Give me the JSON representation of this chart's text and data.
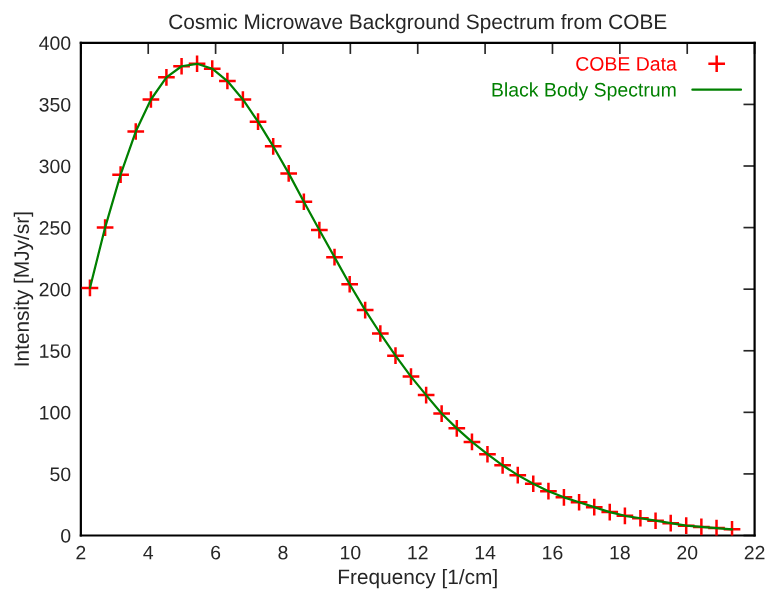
{
  "chart_data": {
    "type": "scatter",
    "title": "Cosmic Microwave Background Spectrum from COBE",
    "xlabel": "Frequency [1/cm]",
    "ylabel": "Intensity [MJy/sr]",
    "x": [
      2.27,
      2.72,
      3.18,
      3.63,
      4.08,
      4.54,
      4.99,
      5.45,
      5.9,
      6.35,
      6.81,
      7.26,
      7.71,
      8.17,
      8.62,
      9.08,
      9.53,
      9.98,
      10.44,
      10.89,
      11.34,
      11.8,
      12.25,
      12.71,
      13.16,
      13.61,
      14.07,
      14.52,
      14.97,
      15.43,
      15.88,
      16.34,
      16.79,
      17.24,
      17.7,
      18.15,
      18.61,
      19.06,
      19.51,
      19.97,
      20.42,
      20.87,
      21.33
    ],
    "series": [
      {
        "name": "COBE Data",
        "color": "#ff0000",
        "marker": "cross",
        "values": [
          201,
          250,
          293,
          328,
          354,
          372,
          381,
          383,
          379,
          369,
          354,
          336,
          316,
          294,
          271,
          248,
          226,
          204,
          183,
          164,
          146,
          129,
          114,
          99,
          87,
          76,
          66,
          57,
          49,
          42,
          36,
          31,
          27,
          23,
          19,
          16,
          14,
          12,
          10,
          8,
          7,
          6,
          5
        ]
      },
      {
        "name": "Black Body Spectrum",
        "type": "line",
        "color": "#008000",
        "line_style": "solid",
        "values": [
          201,
          250,
          293,
          328,
          354,
          372,
          381,
          383,
          379,
          369,
          354,
          336,
          316,
          294,
          271,
          248,
          226,
          204,
          183,
          164,
          146,
          129,
          114,
          99,
          87,
          76,
          66,
          57,
          49,
          42,
          36,
          31,
          27,
          23,
          19,
          16,
          14,
          12,
          10,
          8,
          7,
          6,
          5
        ]
      }
    ],
    "xlim": [
      2,
      22
    ],
    "xticks": [
      2,
      4,
      6,
      8,
      10,
      12,
      14,
      16,
      18,
      20,
      22
    ],
    "ylim": [
      0,
      400
    ],
    "yticks": [
      0,
      50,
      100,
      150,
      200,
      250,
      300,
      350,
      400
    ],
    "grid": false,
    "legend": "top right"
  }
}
